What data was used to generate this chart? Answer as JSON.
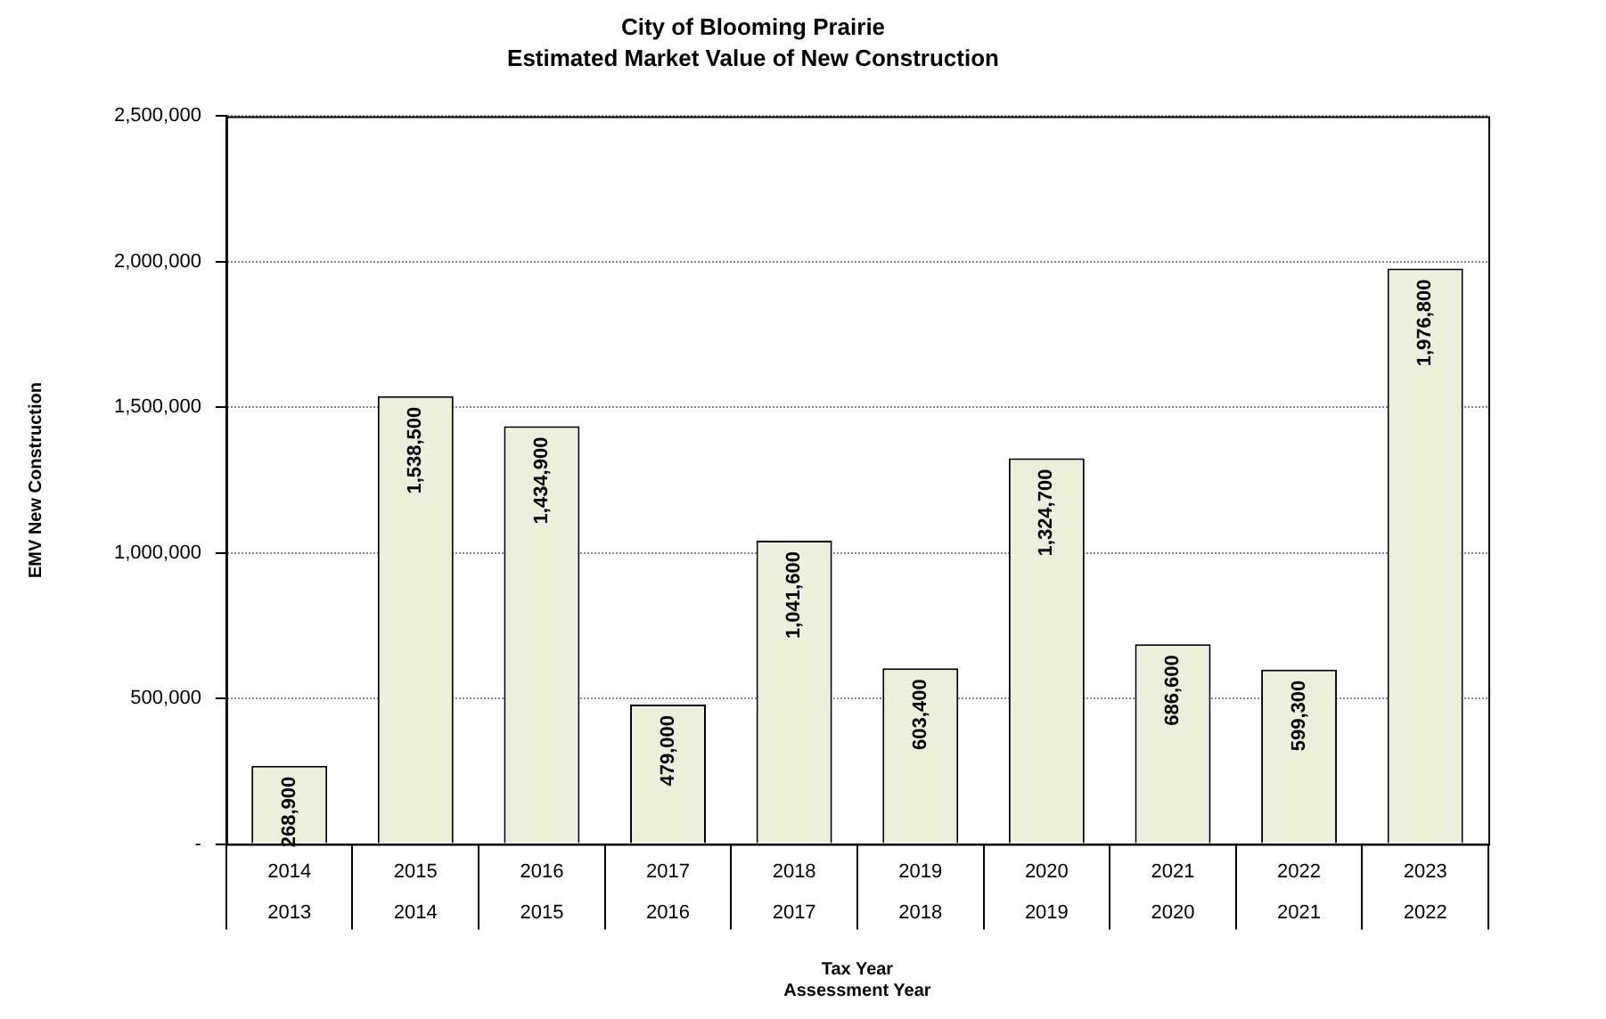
{
  "chart_data": {
    "type": "bar",
    "title": "City of Blooming Prairie",
    "subtitle": "Estimated Market Value of New Construction",
    "xlabel": "Tax Year\nAssessment Year",
    "ylabel": "EMV New Construction",
    "categories": [
      "2014\n2013",
      "2015\n2014",
      "2016\n2015",
      "2017\n2016",
      "2018\n2017",
      "2019\n2018",
      "2020\n2019",
      "2021\n2020",
      "2022\n2021",
      "2023\n2022"
    ],
    "values": [
      268900,
      1538500,
      1434900,
      479000,
      1041600,
      603400,
      1324700,
      686600,
      599300,
      1976800
    ],
    "value_labels": [
      "268,900",
      "1,538,500",
      "1,434,900",
      "479,000",
      "1,041,600",
      "603,400",
      "1,324,700",
      "686,600",
      "599,300",
      "1,976,800"
    ],
    "color": "#ecefdc",
    "ylim": [
      0,
      2500000
    ],
    "yticks": [
      {
        "value": 0,
        "label": "-"
      },
      {
        "value": 500000,
        "label": "500,000"
      },
      {
        "value": 1000000,
        "label": "1,000,000"
      },
      {
        "value": 1500000,
        "label": "1,500,000"
      },
      {
        "value": 2000000,
        "label": "2,000,000"
      },
      {
        "value": 2500000,
        "label": "2,500,000"
      }
    ],
    "grid": "y",
    "legend": false
  }
}
